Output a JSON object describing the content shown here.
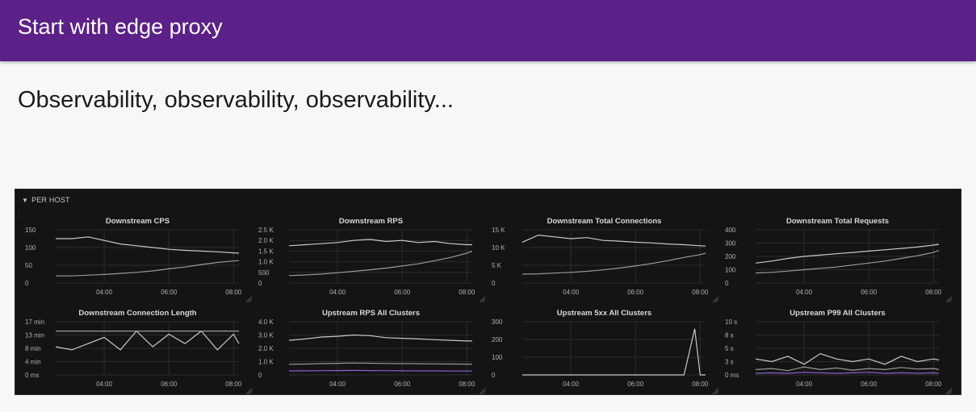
{
  "header": {
    "title": "Start with edge proxy"
  },
  "subtitle": "Observability, observability, observability...",
  "dashboard": {
    "row_label": "PER HOST",
    "colors": {
      "background": "#141414",
      "panel_title": "#d8d9da",
      "axis_text": "#b0b0b0",
      "grid": "#2c2c2c",
      "series": "#c8c8c8",
      "accent_purple": "#8a5fd0"
    },
    "panels": [
      {
        "title": "Downstream CPS",
        "chart_data": {
          "type": "line",
          "title": "Downstream CPS",
          "x": [
            "02:30",
            "03:00",
            "03:30",
            "04:00",
            "04:30",
            "05:00",
            "05:30",
            "06:00",
            "06:30",
            "07:00",
            "07:30",
            "08:00",
            "08:10"
          ],
          "x_ticks": [
            "04:00",
            "06:00",
            "08:00"
          ],
          "y_ticks": [
            "150",
            "100",
            "50",
            "0"
          ],
          "ylim": [
            0,
            150
          ],
          "series": [
            {
              "values": [
                125,
                125,
                130,
                120,
                110,
                105,
                100,
                95,
                92,
                90,
                88,
                85,
                84
              ]
            },
            {
              "values": [
                20,
                20,
                22,
                24,
                27,
                30,
                34,
                40,
                45,
                52,
                58,
                62,
                63
              ]
            }
          ]
        }
      },
      {
        "title": "Downstream RPS",
        "chart_data": {
          "type": "line",
          "title": "Downstream RPS",
          "x": [
            "02:30",
            "03:00",
            "03:30",
            "04:00",
            "04:30",
            "05:00",
            "05:30",
            "06:00",
            "06:30",
            "07:00",
            "07:30",
            "08:00",
            "08:10"
          ],
          "x_ticks": [
            "04:00",
            "06:00",
            "08:00"
          ],
          "y_ticks": [
            "2.5 K",
            "2.0 K",
            "1.5 K",
            "1.0 K",
            "500",
            "0"
          ],
          "ylim": [
            0,
            2500
          ],
          "series": [
            {
              "values": [
                1750,
                1800,
                1850,
                1900,
                2000,
                2050,
                1950,
                2000,
                1900,
                1950,
                1850,
                1800,
                1800
              ]
            },
            {
              "values": [
                350,
                380,
                420,
                480,
                550,
                620,
                700,
                800,
                900,
                1050,
                1200,
                1400,
                1500
              ]
            }
          ]
        }
      },
      {
        "title": "Downstream Total Connections",
        "chart_data": {
          "type": "line",
          "title": "Downstream Total Connections",
          "x": [
            "02:30",
            "03:00",
            "03:30",
            "04:00",
            "04:30",
            "05:00",
            "05:30",
            "06:00",
            "06:30",
            "07:00",
            "07:30",
            "08:00",
            "08:10"
          ],
          "x_ticks": [
            "04:00",
            "06:00",
            "08:00"
          ],
          "y_ticks": [
            "15 K",
            "10 K",
            "5 K",
            "0"
          ],
          "ylim": [
            0,
            15000
          ],
          "series": [
            {
              "values": [
                11500,
                13500,
                13000,
                12500,
                12800,
                12000,
                11800,
                11500,
                11300,
                11000,
                10800,
                10500,
                10400
              ]
            },
            {
              "values": [
                2500,
                2600,
                2800,
                3000,
                3300,
                3700,
                4200,
                4800,
                5500,
                6300,
                7200,
                8000,
                8400
              ]
            }
          ]
        }
      },
      {
        "title": "Downstream Total Requests",
        "chart_data": {
          "type": "line",
          "title": "Downstream Total Requests",
          "x": [
            "02:30",
            "03:00",
            "03:30",
            "04:00",
            "04:30",
            "05:00",
            "05:30",
            "06:00",
            "06:30",
            "07:00",
            "07:30",
            "08:00",
            "08:10"
          ],
          "x_ticks": [
            "04:00",
            "06:00",
            "08:00"
          ],
          "y_ticks": [
            "400",
            "300",
            "200",
            "100",
            "0"
          ],
          "ylim": [
            0,
            400
          ],
          "series": [
            {
              "values": [
                150,
                165,
                185,
                200,
                210,
                220,
                230,
                240,
                250,
                260,
                270,
                285,
                290
              ]
            },
            {
              "values": [
                75,
                80,
                90,
                100,
                110,
                120,
                135,
                150,
                165,
                185,
                205,
                230,
                245
              ]
            }
          ]
        }
      },
      {
        "title": "Downstream Connection Length",
        "chart_data": {
          "type": "line",
          "title": "Downstream Connection Length",
          "x": [
            "02:30",
            "03:00",
            "03:30",
            "04:00",
            "04:30",
            "05:00",
            "05:30",
            "06:00",
            "06:30",
            "07:00",
            "07:30",
            "08:00",
            "08:10"
          ],
          "x_ticks": [
            "04:00",
            "06:00",
            "08:00"
          ],
          "y_ticks": [
            "17 min",
            "13 min",
            "8 min",
            "4 min",
            "0 ms"
          ],
          "ylim": [
            0,
            17
          ],
          "series": [
            {
              "values": [
                9,
                8,
                10,
                12,
                8,
                14,
                9,
                13,
                10,
                14,
                8,
                13,
                10
              ]
            },
            {
              "values": [
                14,
                14,
                14,
                14,
                14,
                14,
                14,
                14,
                14,
                14,
                14,
                14,
                14
              ]
            }
          ]
        }
      },
      {
        "title": "Upstream RPS All Clusters",
        "chart_data": {
          "type": "line",
          "title": "Upstream RPS All Clusters",
          "x": [
            "02:30",
            "03:00",
            "03:30",
            "04:00",
            "04:30",
            "05:00",
            "05:30",
            "06:00",
            "06:30",
            "07:00",
            "07:30",
            "08:00",
            "08:10"
          ],
          "x_ticks": [
            "04:00",
            "06:00",
            "08:00"
          ],
          "y_ticks": [
            "4.0 K",
            "3.0 K",
            "2.0 K",
            "1.0 K",
            "0"
          ],
          "ylim": [
            0,
            4000
          ],
          "series": [
            {
              "values": [
                2600,
                2700,
                2850,
                2900,
                3000,
                2950,
                2800,
                2750,
                2700,
                2650,
                2600,
                2550,
                2550
              ]
            },
            {
              "values": [
                800,
                820,
                850,
                870,
                900,
                880,
                860,
                850,
                840,
                830,
                820,
                810,
                800
              ]
            },
            {
              "values": [
                300,
                310,
                320,
                330,
                340,
                330,
                320,
                310,
                300,
                300,
                290,
                290,
                290
              ]
            }
          ]
        }
      },
      {
        "title": "Upstream 5xx All Clusters",
        "chart_data": {
          "type": "line",
          "title": "Upstream 5xx All Clusters",
          "x": [
            "02:30",
            "03:00",
            "03:30",
            "04:00",
            "04:30",
            "05:00",
            "05:30",
            "06:00",
            "06:30",
            "07:00",
            "07:30",
            "07:50",
            "08:00",
            "08:10"
          ],
          "x_ticks": [
            "04:00",
            "06:00",
            "08:00"
          ],
          "y_ticks": [
            "300",
            "200",
            "100",
            "0"
          ],
          "ylim": [
            0,
            300
          ],
          "series": [
            {
              "values": [
                0,
                0,
                0,
                0,
                0,
                0,
                0,
                0,
                0,
                0,
                0,
                260,
                0,
                0
              ]
            }
          ]
        }
      },
      {
        "title": "Upstream P99 All Clusters",
        "chart_data": {
          "type": "line",
          "title": "Upstream P99 All Clusters",
          "x": [
            "02:30",
            "03:00",
            "03:30",
            "04:00",
            "04:30",
            "05:00",
            "05:30",
            "06:00",
            "06:30",
            "07:00",
            "07:30",
            "08:00",
            "08:10"
          ],
          "x_ticks": [
            "04:00",
            "06:00",
            "08:00"
          ],
          "y_ticks": [
            "10 s",
            "8 s",
            "5 s",
            "3 s",
            "0 ms"
          ],
          "ylim": [
            0,
            10
          ],
          "series": [
            {
              "values": [
                3,
                2.5,
                3.5,
                2,
                4,
                3,
                2.5,
                3,
                2,
                3.5,
                2.5,
                3,
                2.8
              ]
            },
            {
              "values": [
                1,
                1.2,
                0.8,
                1.5,
                1,
                1.3,
                0.9,
                1.2,
                1,
                1.4,
                1.1,
                1.2,
                1
              ]
            },
            {
              "values": [
                0.3,
                0.4,
                0.3,
                0.5,
                0.4,
                0.3,
                0.4,
                0.5,
                0.3,
                0.4,
                0.3,
                0.4,
                0.3
              ]
            }
          ]
        }
      }
    ]
  }
}
